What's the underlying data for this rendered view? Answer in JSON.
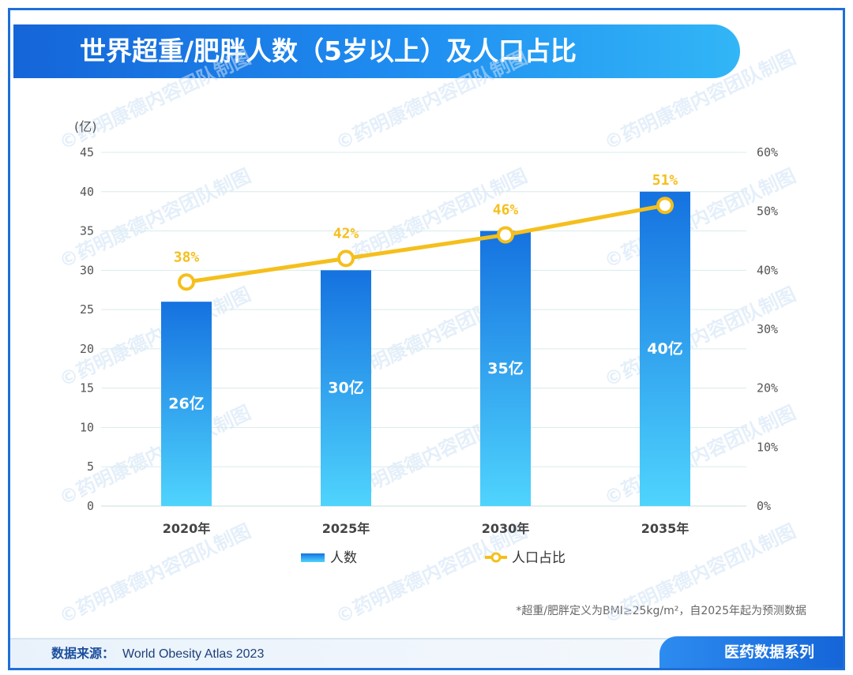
{
  "title": "世界超重/肥胖人数（5岁以上）及人口占比",
  "watermark": "©药明康德内容团队制图",
  "footnote": "*超重/肥胖定义为BMI≥25kg/m²，自2025年起为预测数据",
  "source": {
    "label": "数据来源：",
    "value": "World Obesity Atlas 2023"
  },
  "series_tag": "医药数据系列",
  "colors": {
    "bar_top": "#1572e0",
    "bar_bottom": "#4fd4fd",
    "line": "#f5bf1c",
    "title_bar": "#1f8ef1",
    "grid": "#d9ecec"
  },
  "chart_data": {
    "type": "bar",
    "categories": [
      "2020年",
      "2025年",
      "2030年",
      "2035年"
    ],
    "series": [
      {
        "name": "人数",
        "type": "bar",
        "axis": "left",
        "values": [
          26,
          30,
          35,
          40
        ],
        "labels": [
          "26亿",
          "30亿",
          "35亿",
          "40亿"
        ]
      },
      {
        "name": "人口占比",
        "type": "line",
        "axis": "right",
        "values": [
          38,
          42,
          46,
          51
        ],
        "labels": [
          "38%",
          "42%",
          "46%",
          "51%"
        ]
      }
    ],
    "y_unit": "(亿)",
    "ylim": [
      0,
      45
    ],
    "yticks": [
      "0",
      "5",
      "10",
      "15",
      "20",
      "25",
      "30",
      "35",
      "40",
      "45"
    ],
    "y2lim": [
      0,
      60
    ],
    "y2ticks": [
      "0%",
      "10%",
      "20%",
      "30%",
      "40%",
      "50%",
      "60%"
    ],
    "grid": true,
    "legend_position": "bottom"
  }
}
